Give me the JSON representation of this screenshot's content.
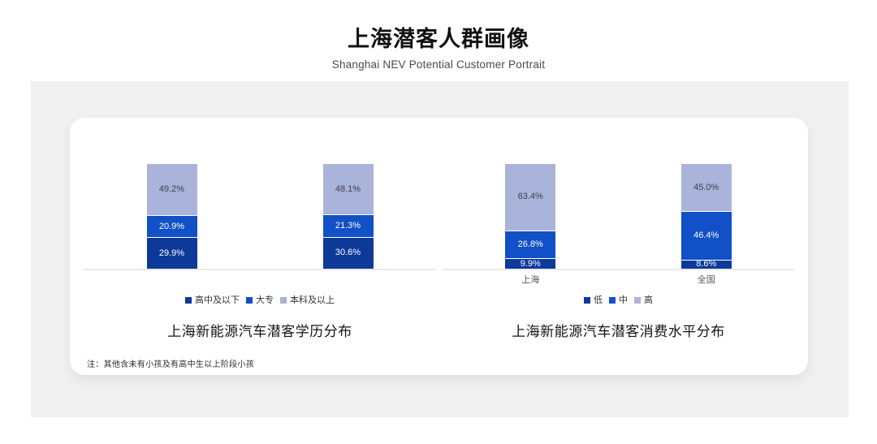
{
  "header": {
    "title": "上海潜客人群画像",
    "subtitle": "Shanghai NEV Potential Customer Portrait"
  },
  "note": "注：其他含未有小孩及有高中生以上阶段小孩",
  "colors": {
    "series_dark": "#0d3a99",
    "series_mid": "#1150c6",
    "series_light": "#aab3d9",
    "panel_bg": "#f0f0f1",
    "card_bg": "#ffffff",
    "axis": "#e8e8ea"
  },
  "chart_data": [
    {
      "type": "bar",
      "stacked": true,
      "percent_stacked": true,
      "title": "上海新能源汽车潜客学历分布",
      "categories": [
        "",
        ""
      ],
      "series": [
        {
          "name": "高中及以下",
          "color_key": "series_dark",
          "label_color": "#ffffff",
          "values": [
            29.9,
            30.6
          ]
        },
        {
          "name": "大专",
          "color_key": "series_mid",
          "label_color": "#ffffff",
          "values": [
            20.9,
            21.3
          ]
        },
        {
          "name": "本科及以上",
          "color_key": "series_light",
          "label_color": "#3d3d4a",
          "values": [
            49.2,
            48.1
          ]
        }
      ],
      "unit": "%",
      "ylim": [
        0,
        100
      ],
      "grid": false,
      "legend_position": "bottom"
    },
    {
      "type": "bar",
      "stacked": true,
      "percent_stacked": true,
      "title": "上海新能源汽车潜客消费水平分布",
      "categories": [
        "上海",
        "全国"
      ],
      "series": [
        {
          "name": "低",
          "color_key": "series_dark",
          "label_color": "#ffffff",
          "values": [
            9.9,
            8.6
          ]
        },
        {
          "name": "中",
          "color_key": "series_mid",
          "label_color": "#ffffff",
          "values": [
            26.8,
            46.4
          ]
        },
        {
          "name": "高",
          "color_key": "series_light",
          "label_color": "#3d3d4a",
          "values": [
            63.4,
            45.0
          ]
        }
      ],
      "unit": "%",
      "ylim": [
        0,
        100
      ],
      "grid": false,
      "legend_position": "bottom"
    }
  ]
}
